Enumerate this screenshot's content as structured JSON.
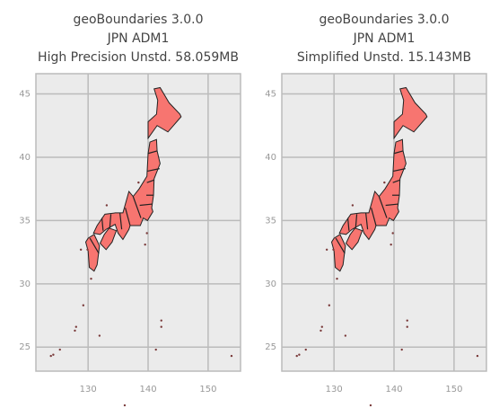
{
  "chart_data": [
    {
      "type": "map",
      "title": [
        "geoBoundaries 3.0.0",
        "JPN ADM1",
        "High Precision Unstd. 58.059MB"
      ],
      "color": "#f77570",
      "grid": true,
      "xlim": [
        121.3,
        155.4
      ],
      "ylim": [
        23.1,
        46.6
      ],
      "xticks": [
        130,
        140,
        150
      ],
      "yticks": [
        25,
        30,
        35,
        40,
        45
      ]
    },
    {
      "type": "map",
      "title": [
        "geoBoundaries 3.0.0",
        "JPN ADM1",
        "Simplified Unstd. 15.143MB"
      ],
      "color": "#f77570",
      "grid": true,
      "xlim": [
        121.3,
        155.4
      ],
      "ylim": [
        23.1,
        46.6
      ],
      "xticks": [
        130,
        140,
        150
      ],
      "yticks": [
        25,
        30,
        35,
        40,
        45
      ]
    }
  ]
}
